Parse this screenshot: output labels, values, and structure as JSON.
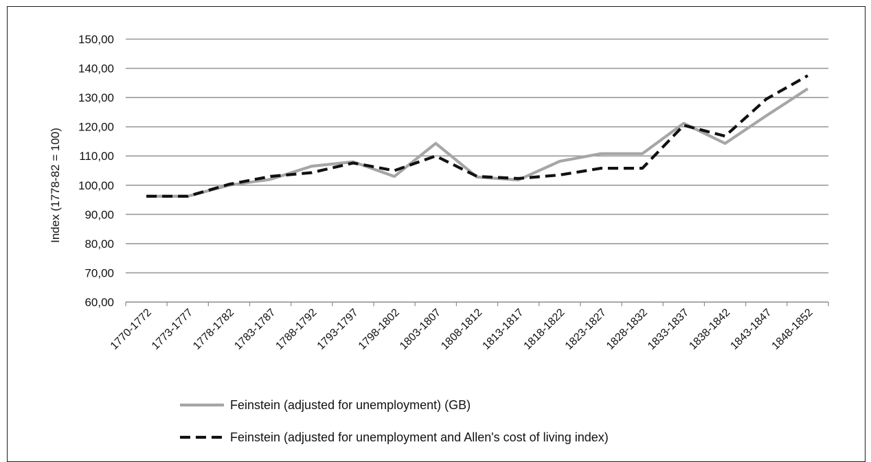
{
  "chart_data": {
    "type": "line",
    "title": "",
    "xlabel": "",
    "ylabel": "Index (1778-82 = 100)",
    "ylim": [
      60,
      150
    ],
    "yticks": [
      "60,00",
      "70,00",
      "80,00",
      "90,00",
      "100,00",
      "110,00",
      "120,00",
      "130,00",
      "140,00",
      "150,00"
    ],
    "grid": true,
    "legend_position": "bottom",
    "categories": [
      "1770-1772",
      "1773-1777",
      "1778-1782",
      "1783-1787",
      "1788-1792",
      "1793-1797",
      "1798-1802",
      "1803-1807",
      "1808-1812",
      "1813-1817",
      "1818-1822",
      "1823-1827",
      "1828-1832",
      "1833-1837",
      "1838-1842",
      "1843-1847",
      "1848-1852"
    ],
    "series": [
      {
        "name": "Feinstein (adjusted for unemployment) (GB)",
        "color": "#a6a6a6",
        "dash": "solid",
        "values": [
          96.2,
          96.2,
          100.0,
          102.0,
          106.5,
          108.0,
          103.0,
          114.3,
          102.8,
          101.8,
          108.2,
          110.8,
          110.8,
          121.2,
          114.3,
          123.8,
          133.0
        ]
      },
      {
        "name": "Feinstein (adjusted for unemployment and Allen's cost of living index)",
        "color": "#111111",
        "dash": "dashed",
        "values": [
          96.2,
          96.2,
          100.3,
          103.0,
          104.3,
          107.6,
          105.0,
          110.0,
          103.0,
          102.3,
          103.5,
          105.8,
          105.8,
          120.5,
          116.8,
          129.5,
          137.5
        ]
      }
    ]
  }
}
